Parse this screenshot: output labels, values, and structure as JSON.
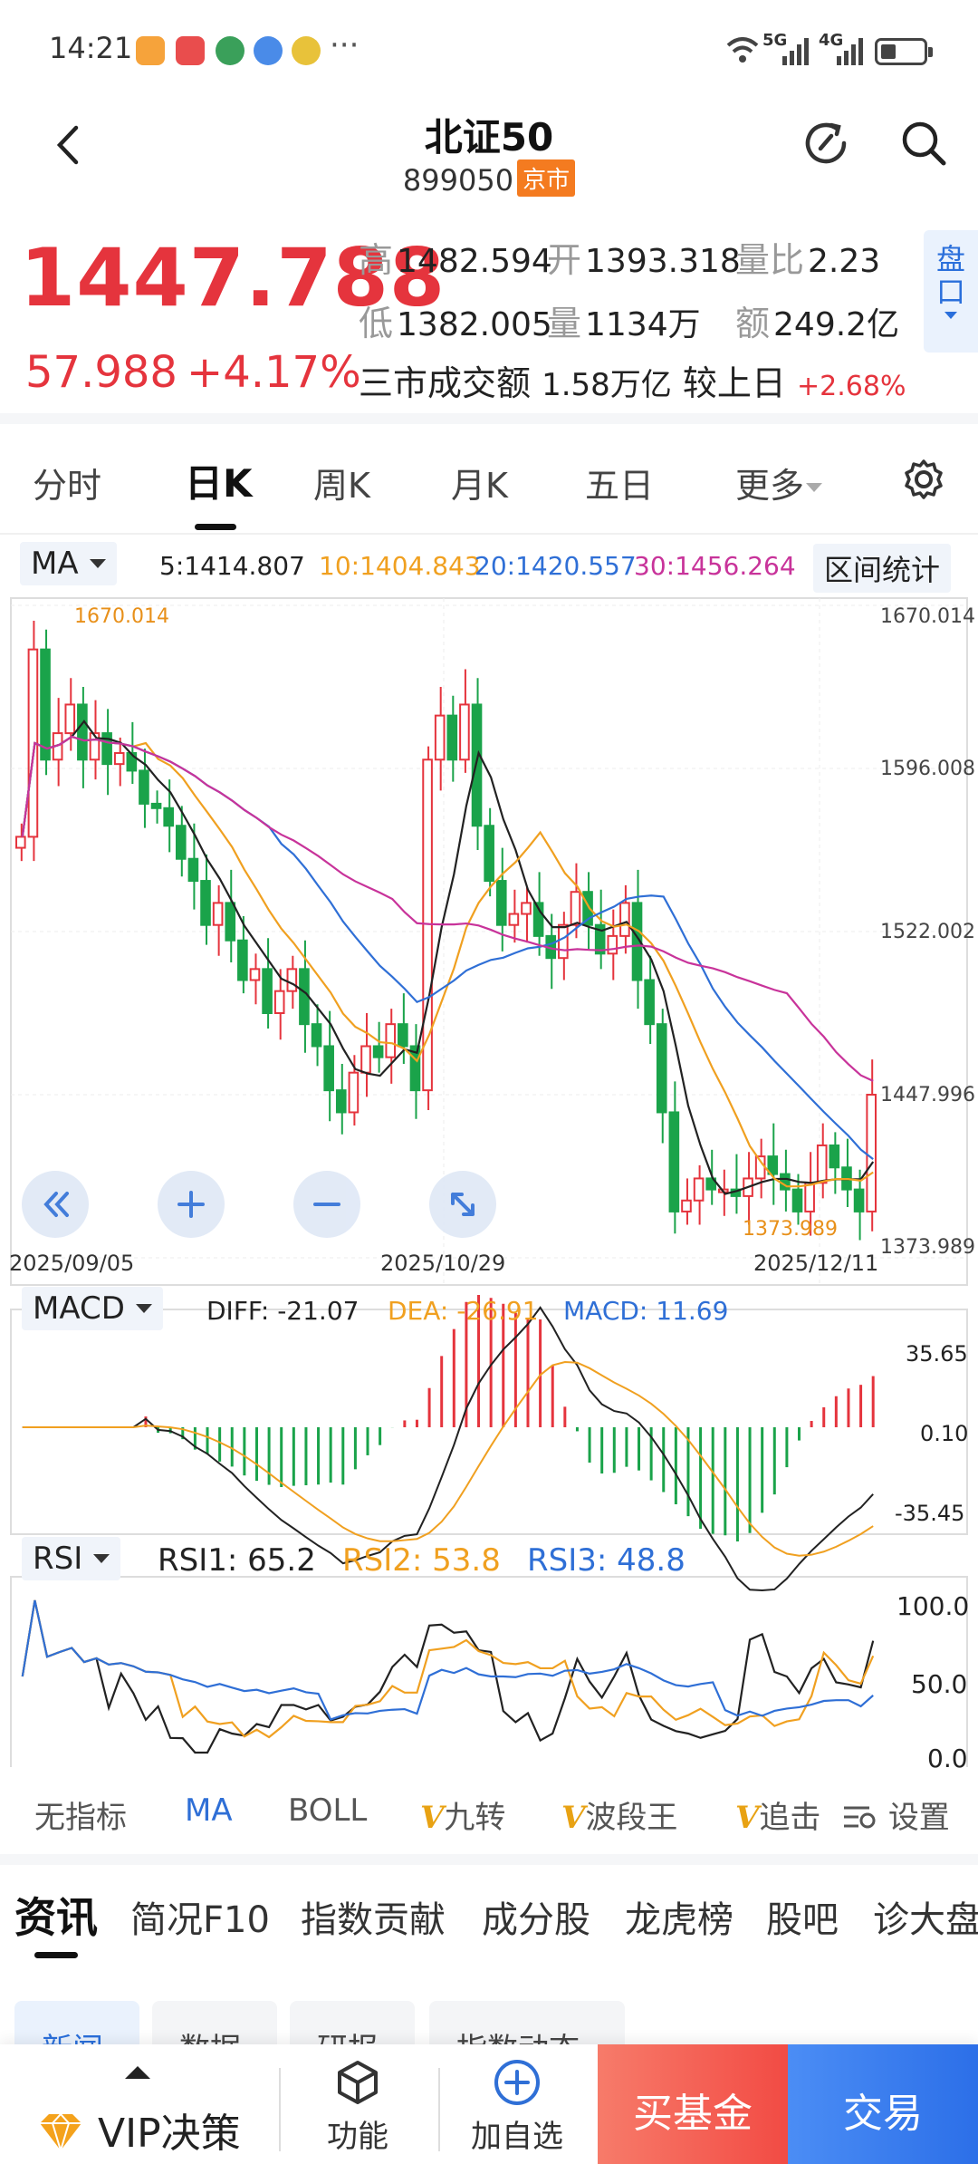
{
  "status_bar": {
    "time": "14:21",
    "more": "···",
    "net1": "5G",
    "net2": "4G"
  },
  "header": {
    "title": "北证50",
    "code": "899050",
    "market_tag": "京市"
  },
  "quote": {
    "price": "1447.788",
    "change": "57.988",
    "change_pct": "+4.17%",
    "high_label": "高",
    "high": "1482.594",
    "open_label": "开",
    "open": "1393.318",
    "vol_ratio_label": "量比",
    "vol_ratio": "2.23",
    "low_label": "低",
    "low": "1382.005",
    "volume_label": "量",
    "volume": "1134万",
    "amount_label": "额",
    "amount": "249.2亿",
    "market_turnover_text": "三市成交额",
    "market_turnover": "1.58万亿",
    "vs_prev_label": "较上日",
    "vs_prev": "+2.68%",
    "pankou": "盘口"
  },
  "period_tabs": [
    "分时",
    "日K",
    "周K",
    "月K",
    "五日",
    "更多"
  ],
  "ma_bar": {
    "selector": "MA",
    "ma5": "5:1414.807",
    "ma10": "10:1404.843",
    "ma20": "20:1420.557",
    "ma30": "30:1456.264",
    "range_stat": "区间统计"
  },
  "kline": {
    "y_labels": [
      "1670.014",
      "1596.008",
      "1522.002",
      "1447.996",
      "1373.989"
    ],
    "x_labels": [
      "2025/09/05",
      "2025/10/29",
      "2025/12/11"
    ],
    "high_mark": "1670.014",
    "low_mark": "1373.989"
  },
  "macd": {
    "selector": "MACD",
    "diff": "DIFF: -21.07",
    "dea": "DEA: -26.91",
    "macd": "MACD: 11.69",
    "y_labels": [
      "35.65",
      "0.10",
      "-35.45"
    ]
  },
  "rsi": {
    "selector": "RSI",
    "rsi1": "RSI1: 65.2",
    "rsi2": "RSI2: 53.8",
    "rsi3": "RSI3: 48.8",
    "y_labels": [
      "100.0",
      "50.0",
      "0.0"
    ]
  },
  "indicator_tabs": {
    "none": "无指标",
    "ma": "MA",
    "boll": "BOLL",
    "v": "V",
    "jiuzhuan": "九转",
    "boduanwang": "波段王",
    "zhuiji": "追击",
    "settings": "设置"
  },
  "news_tabs": [
    "资讯",
    "简况F10",
    "指数贡献",
    "成分股",
    "龙虎榜",
    "股吧",
    "诊大盘"
  ],
  "news_chips": [
    "新闻",
    "数据",
    "研报",
    "指数动态"
  ],
  "bottom_bar": {
    "vip": "VIP决策",
    "func": "功能",
    "add": "加自选",
    "buy": "买基金",
    "trade": "交易"
  },
  "colors": {
    "up": "#e5343d",
    "down": "#1aa34a",
    "ma5": "#222222",
    "ma10": "#f0a020",
    "ma20": "#2f6fd6",
    "ma30": "#c8339a"
  }
}
